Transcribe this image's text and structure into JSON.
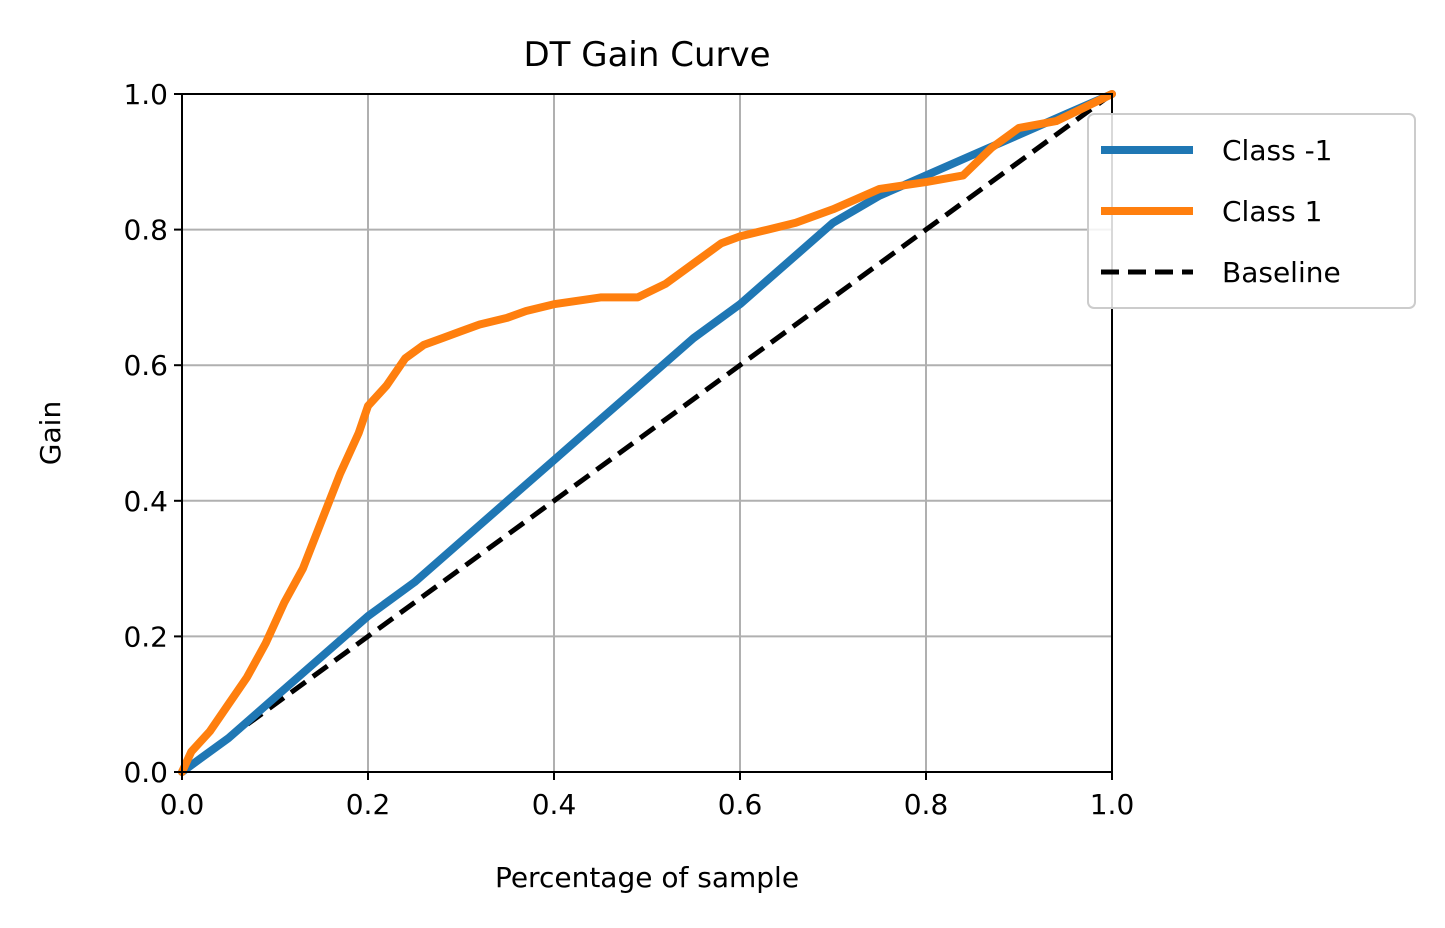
{
  "chart_data": {
    "type": "line",
    "title": "DT Gain Curve",
    "xlabel": "Percentage of sample",
    "ylabel": "Gain",
    "xlim": [
      0.0,
      1.0
    ],
    "ylim": [
      0.0,
      1.0
    ],
    "xticks": [
      "0.0",
      "0.2",
      "0.4",
      "0.6",
      "0.8",
      "1.0"
    ],
    "yticks": [
      "0.0",
      "0.2",
      "0.4",
      "0.6",
      "0.8",
      "1.0"
    ],
    "grid": true,
    "legend_position": "upper-right-outside",
    "series": [
      {
        "name": "Class -1",
        "color": "#1f77b4",
        "style": "solid",
        "points": [
          [
            0.0,
            0.0
          ],
          [
            0.02,
            0.02
          ],
          [
            0.05,
            0.05
          ],
          [
            0.1,
            0.11
          ],
          [
            0.15,
            0.17
          ],
          [
            0.2,
            0.23
          ],
          [
            0.25,
            0.28
          ],
          [
            0.3,
            0.34
          ],
          [
            0.35,
            0.4
          ],
          [
            0.4,
            0.46
          ],
          [
            0.45,
            0.52
          ],
          [
            0.5,
            0.58
          ],
          [
            0.55,
            0.64
          ],
          [
            0.6,
            0.69
          ],
          [
            0.65,
            0.75
          ],
          [
            0.7,
            0.81
          ],
          [
            0.75,
            0.85
          ],
          [
            0.8,
            0.88
          ],
          [
            0.85,
            0.91
          ],
          [
            0.9,
            0.94
          ],
          [
            0.95,
            0.97
          ],
          [
            1.0,
            1.0
          ]
        ]
      },
      {
        "name": "Class 1",
        "color": "#ff7f0e",
        "style": "solid",
        "points": [
          [
            0.0,
            0.0
          ],
          [
            0.01,
            0.03
          ],
          [
            0.03,
            0.06
          ],
          [
            0.05,
            0.1
          ],
          [
            0.07,
            0.14
          ],
          [
            0.09,
            0.19
          ],
          [
            0.11,
            0.25
          ],
          [
            0.13,
            0.3
          ],
          [
            0.15,
            0.37
          ],
          [
            0.17,
            0.44
          ],
          [
            0.19,
            0.5
          ],
          [
            0.2,
            0.54
          ],
          [
            0.22,
            0.57
          ],
          [
            0.24,
            0.61
          ],
          [
            0.26,
            0.63
          ],
          [
            0.28,
            0.64
          ],
          [
            0.3,
            0.65
          ],
          [
            0.32,
            0.66
          ],
          [
            0.35,
            0.67
          ],
          [
            0.37,
            0.68
          ],
          [
            0.4,
            0.69
          ],
          [
            0.45,
            0.7
          ],
          [
            0.49,
            0.7
          ],
          [
            0.52,
            0.72
          ],
          [
            0.55,
            0.75
          ],
          [
            0.58,
            0.78
          ],
          [
            0.6,
            0.79
          ],
          [
            0.63,
            0.8
          ],
          [
            0.66,
            0.81
          ],
          [
            0.7,
            0.83
          ],
          [
            0.75,
            0.86
          ],
          [
            0.8,
            0.87
          ],
          [
            0.84,
            0.88
          ],
          [
            0.87,
            0.92
          ],
          [
            0.9,
            0.95
          ],
          [
            0.94,
            0.96
          ],
          [
            0.97,
            0.98
          ],
          [
            1.0,
            1.0
          ]
        ]
      },
      {
        "name": "Baseline",
        "color": "#000000",
        "style": "dashed",
        "points": [
          [
            0.0,
            0.0
          ],
          [
            1.0,
            1.0
          ]
        ]
      }
    ]
  }
}
